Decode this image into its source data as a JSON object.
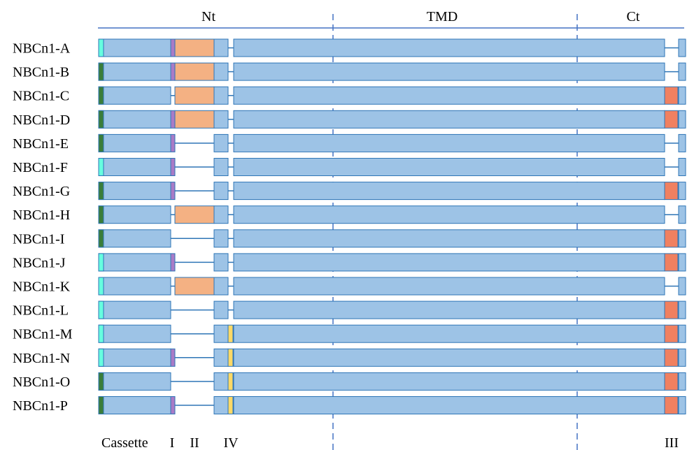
{
  "header": {
    "domains": [
      {
        "key": "nt",
        "label": "Nt"
      },
      {
        "key": "tmd",
        "label": "TMD"
      },
      {
        "key": "ct",
        "label": "Ct"
      }
    ]
  },
  "footer": {
    "labels": [
      {
        "key": "cassette",
        "label": "Cassette"
      },
      {
        "key": "cassette_i",
        "label": "I"
      },
      {
        "key": "cassette_ii",
        "label": "II"
      },
      {
        "key": "cassette_iv",
        "label": "IV"
      },
      {
        "key": "cassette_iii",
        "label": "III"
      }
    ]
  },
  "colors": {
    "body": "#9DC3E6",
    "outline": "#2E75B6",
    "connector": "#2E75B6",
    "divider": "#4472C4",
    "start_green": "#3A7D3A",
    "start_cyan": "#66FFE0",
    "cassette_I": "#A97BC6",
    "cassette_II": "#F4B183",
    "cassette_III": "#F08060",
    "cassette_IV": "#FFD966"
  },
  "variants": [
    {
      "name": "NBCn1-A",
      "start": "cyan",
      "I": true,
      "II": true,
      "IV": false,
      "III": false
    },
    {
      "name": "NBCn1-B",
      "start": "green",
      "I": true,
      "II": true,
      "IV": false,
      "III": false
    },
    {
      "name": "NBCn1-C",
      "start": "green",
      "I": false,
      "II": true,
      "IV": false,
      "III": true
    },
    {
      "name": "NBCn1-D",
      "start": "green",
      "I": true,
      "II": true,
      "IV": false,
      "III": true
    },
    {
      "name": "NBCn1-E",
      "start": "green",
      "I": true,
      "II": false,
      "IV": false,
      "III": false
    },
    {
      "name": "NBCn1-F",
      "start": "cyan",
      "I": true,
      "II": false,
      "IV": false,
      "III": false
    },
    {
      "name": "NBCn1-G",
      "start": "green",
      "I": true,
      "II": false,
      "IV": false,
      "III": true
    },
    {
      "name": "NBCn1-H",
      "start": "green",
      "I": false,
      "II": true,
      "IV": false,
      "III": false
    },
    {
      "name": "NBCn1-I",
      "start": "green",
      "I": false,
      "II": false,
      "IV": false,
      "III": true
    },
    {
      "name": "NBCn1-J",
      "start": "cyan",
      "I": true,
      "II": false,
      "IV": false,
      "III": true
    },
    {
      "name": "NBCn1-K",
      "start": "cyan",
      "I": false,
      "II": true,
      "IV": false,
      "III": false
    },
    {
      "name": "NBCn1-L",
      "start": "cyan",
      "I": false,
      "II": false,
      "IV": false,
      "III": true
    },
    {
      "name": "NBCn1-M",
      "start": "cyan",
      "I": false,
      "II": false,
      "IV": true,
      "III": true
    },
    {
      "name": "NBCn1-N",
      "start": "cyan",
      "I": true,
      "II": false,
      "IV": true,
      "III": true
    },
    {
      "name": "NBCn1-O",
      "start": "green",
      "I": false,
      "II": false,
      "IV": true,
      "III": true
    },
    {
      "name": "NBCn1-P",
      "start": "green",
      "I": true,
      "II": false,
      "IV": true,
      "III": true
    }
  ]
}
